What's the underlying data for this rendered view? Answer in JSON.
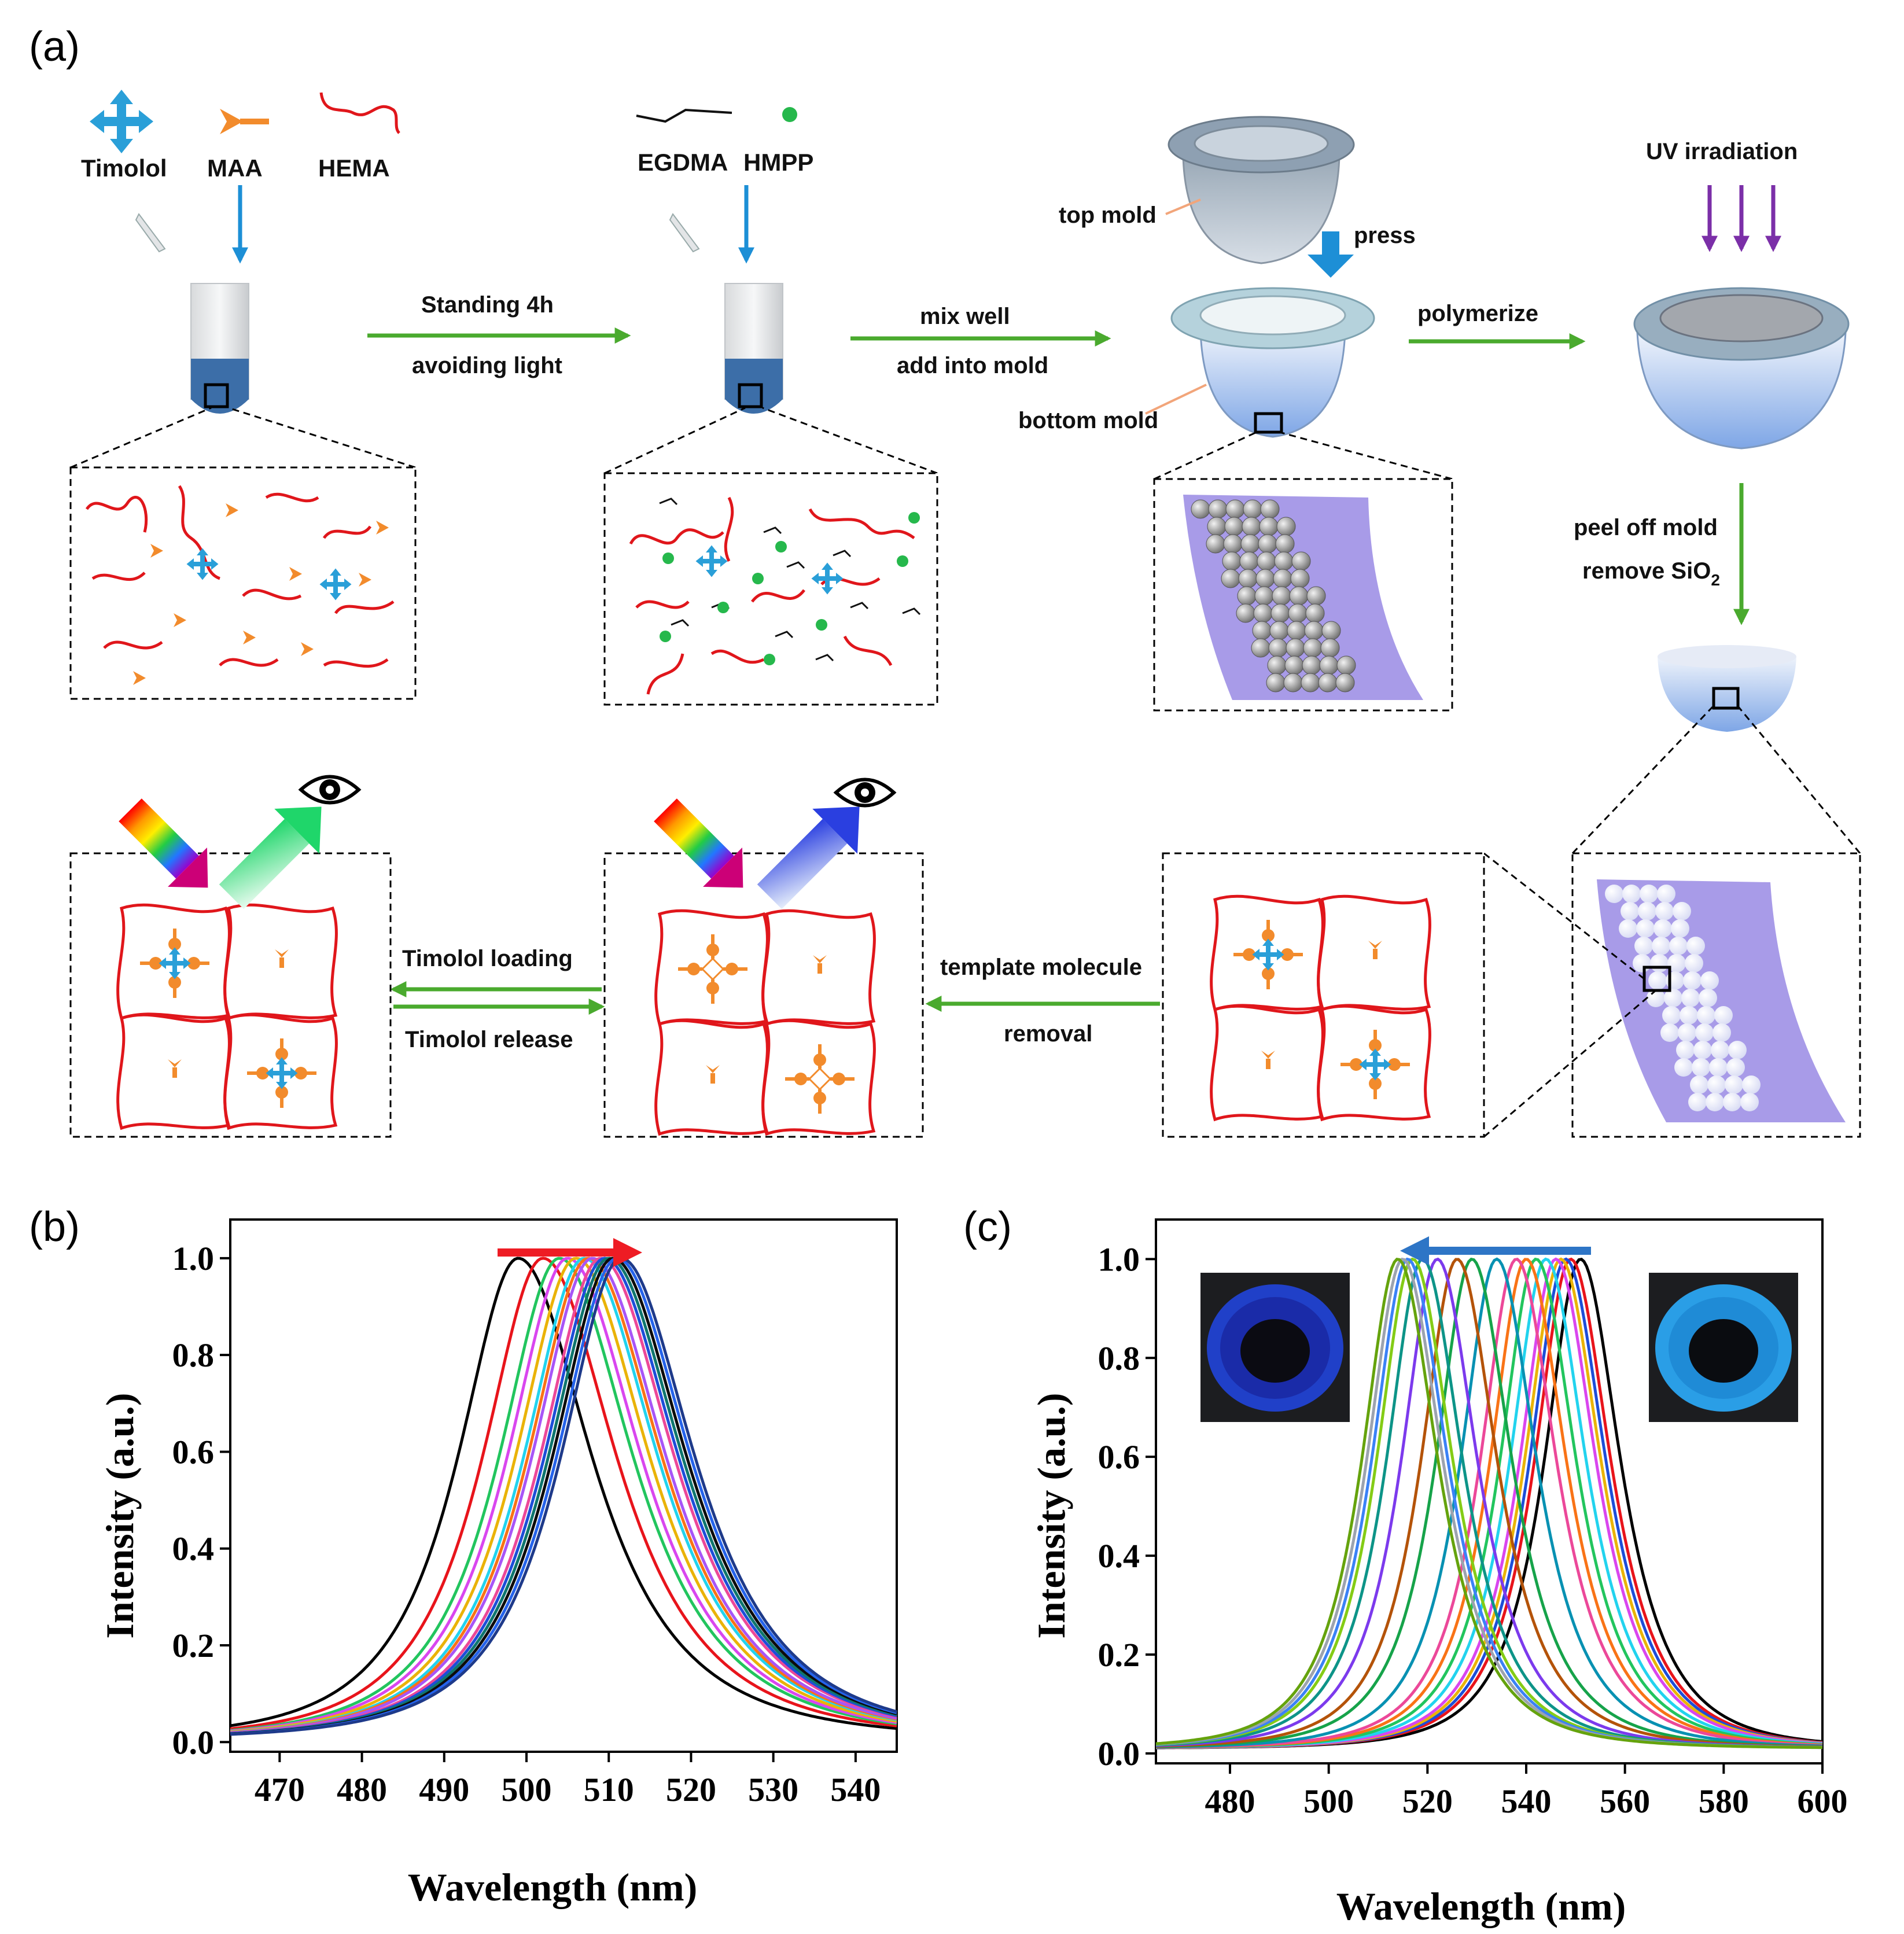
{
  "panels": {
    "a": "(a)",
    "b": "(b)",
    "c": "(c)"
  },
  "legend": {
    "timolol": "Timolol",
    "maa": "MAA",
    "hema": "HEMA",
    "egdma": "EGDMA",
    "hmpp": "HMPP"
  },
  "steps": {
    "standing": "Standing 4h",
    "avoiding_light": "avoiding light",
    "mix_well": "mix well",
    "add_into_mold": "add into mold",
    "polymerize": "polymerize",
    "peel_off": "peel off mold",
    "remove_sio2_prefix": "remove SiO",
    "remove_sio2_sub": "2",
    "template_molecule": "template molecule",
    "removal": "removal",
    "timolol_loading": "Timolol loading",
    "timolol_release": "Timolol release"
  },
  "mold": {
    "top": "top mold",
    "bottom": "bottom mold",
    "press": "press",
    "uv": "UV  irradiation"
  },
  "colors": {
    "arrow_green": "#4aaa2e",
    "arrow_blue": "#1d8fd6",
    "uv_purple": "#7b2fa8",
    "polymer_red": "#e0161b",
    "maa_orange": "#f28b2c",
    "timolol_blue": "#2a9fd8",
    "hmpp_green": "#26b84c",
    "crystal_purple": "#a89be8",
    "shift_arrow_red": "#ee1c24",
    "shift_arrow_blue": "#2e75c6"
  },
  "chart_data": [
    {
      "type": "line",
      "panel": "(b)",
      "title": "",
      "xlabel": "Wavelength (nm)",
      "ylabel": "Intensity (a.u.)",
      "xlim": [
        464,
        545
      ],
      "ylim": [
        -0.02,
        1.08
      ],
      "xticks": [
        "470",
        "480",
        "490",
        "500",
        "510",
        "520",
        "530",
        "540"
      ],
      "yticks": [
        "0.0",
        "0.2",
        "0.4",
        "0.6",
        "0.8",
        "1.0"
      ],
      "shift_direction": "right",
      "series": [
        {
          "name": "s1",
          "peak": 499,
          "color": "#000000"
        },
        {
          "name": "s2",
          "peak": 502,
          "color": "#e8141b"
        },
        {
          "name": "s3",
          "peak": 504,
          "color": "#22c55e"
        },
        {
          "name": "s4",
          "peak": 505,
          "color": "#d946ef"
        },
        {
          "name": "s5",
          "peak": 506,
          "color": "#eab308"
        },
        {
          "name": "s6",
          "peak": 507,
          "color": "#22d3ee"
        },
        {
          "name": "s7",
          "peak": 507.5,
          "color": "#f97316"
        },
        {
          "name": "s8",
          "peak": 508,
          "color": "#a855f7"
        },
        {
          "name": "s9",
          "peak": 509,
          "color": "#ec4899"
        },
        {
          "name": "s10",
          "peak": 509.5,
          "color": "#1d4ed8"
        },
        {
          "name": "s11",
          "peak": 510,
          "color": "#0f766e"
        },
        {
          "name": "s12",
          "peak": 510.5,
          "color": "#0c0c0c"
        },
        {
          "name": "s13",
          "peak": 511,
          "color": "#2563eb"
        },
        {
          "name": "s14",
          "peak": 511.5,
          "color": "#1e3a8a"
        }
      ]
    },
    {
      "type": "line",
      "panel": "(c)",
      "title": "",
      "xlabel": "Wavelength (nm)",
      "ylabel": "Intensity (a.u.)",
      "xlim": [
        465,
        600
      ],
      "ylim": [
        -0.02,
        1.08
      ],
      "xticks": [
        "480",
        "500",
        "520",
        "540",
        "560",
        "580",
        "600"
      ],
      "yticks": [
        "0.0",
        "0.2",
        "0.4",
        "0.6",
        "0.8",
        "1.0"
      ],
      "shift_direction": "left",
      "series": [
        {
          "name": "s1",
          "peak": 551,
          "color": "#000000"
        },
        {
          "name": "s2",
          "peak": 549,
          "color": "#e8141b"
        },
        {
          "name": "s3",
          "peak": 548,
          "color": "#1d4ed8"
        },
        {
          "name": "s4",
          "peak": 547,
          "color": "#eab308"
        },
        {
          "name": "s5",
          "peak": 546,
          "color": "#d946ef"
        },
        {
          "name": "s6",
          "peak": 544,
          "color": "#22d3ee"
        },
        {
          "name": "s7",
          "peak": 542,
          "color": "#22c55e"
        },
        {
          "name": "s8",
          "peak": 540,
          "color": "#f97316"
        },
        {
          "name": "s9",
          "peak": 538,
          "color": "#ec4899"
        },
        {
          "name": "s10",
          "peak": 534,
          "color": "#0891b2"
        },
        {
          "name": "s11",
          "peak": 529,
          "color": "#16a34a"
        },
        {
          "name": "s12",
          "peak": 526,
          "color": "#b45309"
        },
        {
          "name": "s13",
          "peak": 522,
          "color": "#7c3aed"
        },
        {
          "name": "s14",
          "peak": 519,
          "color": "#0d9488"
        },
        {
          "name": "s15",
          "peak": 517,
          "color": "#84cc16"
        },
        {
          "name": "s16",
          "peak": 516,
          "color": "#3b82f6"
        },
        {
          "name": "s17",
          "peak": 515,
          "color": "#9ca3af"
        },
        {
          "name": "s18",
          "peak": 514,
          "color": "#65a30d"
        }
      ],
      "insets": [
        "contact-lens-photo-before",
        "contact-lens-photo-after"
      ]
    }
  ]
}
